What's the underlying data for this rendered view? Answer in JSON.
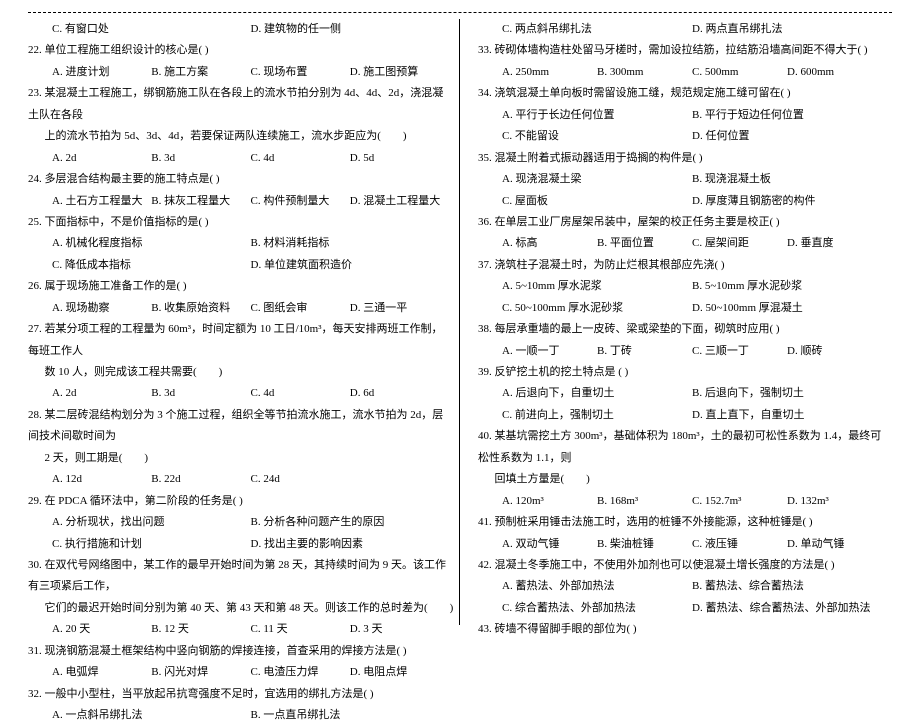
{
  "left": {
    "l1": {
      "c": "  C. 有窗口处",
      "d": "D. 建筑物的任一侧"
    },
    "q22": "22. 单位工程施工组织设计的核心是(        )",
    "q22o": {
      "a": "A. 进度计划",
      "b": "B. 施工方案",
      "c": "C. 现场布置",
      "d": "D. 施工图预算"
    },
    "q23": "23. 某混凝土工程施工，绑钢筋施工队在各段上的流水节拍分别为 4d、4d、2d，浇混凝土队在各段",
    "q23b": "      上的流水节拍为 5d、3d、4d，若要保证两队连续施工，流水步距应为(        )",
    "q23o": {
      "a": "A. 2d",
      "b": "B. 3d",
      "c": "C. 4d",
      "d": "D. 5d"
    },
    "q24": "24. 多层混合结构最主要的施工特点是(        )",
    "q24o": {
      "a": "A. 土石方工程量大",
      "b": "B. 抹灰工程量大",
      "c": "C. 构件预制量大",
      "d": "D. 混凝土工程量大"
    },
    "q25": "25. 下面指标中，不是价值指标的是(        )",
    "q25o1": {
      "a": "A. 机械化程度指标",
      "b": "B. 材料消耗指标"
    },
    "q25o2": {
      "a": "C. 降低成本指标",
      "b": "D. 单位建筑面积造价"
    },
    "q26": "26. 属于现场施工准备工作的是(        )",
    "q26o": {
      "a": "A. 现场勘察",
      "b": "B. 收集原始资料",
      "c": "C. 图纸会审",
      "d": "D. 三通一平"
    },
    "q27": "27. 若某分项工程的工程量为 60m³，时间定额为 10 工日/10m³，每天安排两班工作制，每班工作人",
    "q27b": "      数 10 人，则完成该工程共需要(        )",
    "q27o": {
      "a": "A. 2d",
      "b": "B. 3d",
      "c": "C. 4d",
      "d": "D. 6d"
    },
    "q28": "28. 某二层砖混结构划分为 3 个施工过程，组织全等节拍流水施工，流水节拍为 2d，层间技术间歇时间为",
    "q28b": "      2 天，则工期是(        )",
    "q28o": {
      "a": "A. 12d",
      "b": "B. 22d",
      "c": "C. 24d"
    },
    "q29": "29. 在 PDCA 循环法中，第二阶段的任务是(        )",
    "q29o1": {
      "a": "A. 分析现状，找出问题",
      "b": "B. 分析各种问题产生的原因"
    },
    "q29o2": {
      "a": "C. 执行措施和计划",
      "b": "D. 找出主要的影响因素"
    },
    "q30": "30. 在双代号网络图中，某工作的最早开始时间为第 28 天，其持续时间为 9 天。该工作有三项紧后工作，",
    "q30b": "      它们的最迟开始时间分别为第 40 天、第 43 天和第 48 天。则该工作的总时差为(        )",
    "q30o": {
      "a": "A. 20 天",
      "b": "B. 12 天",
      "c": "C. 11 天",
      "d": "D. 3 天"
    },
    "q31": "31. 现浇钢筋混凝土框架结构中竖向钢筋的焊接连接，首查采用的焊接方法是(        )",
    "q31o": {
      "a": "A. 电弧焊",
      "b": "B. 闪光对焊",
      "c": "C. 电渣压力焊",
      "d": "D. 电阻点焊"
    },
    "q32": "32. 一般中小型柱，当平放起吊抗弯强度不足时，宜选用的绑扎方法是(        )",
    "q32o": {
      "a": "A. 一点斜吊绑扎法",
      "b": "B. 一点直吊绑扎法"
    }
  },
  "right": {
    "q32o2": {
      "a": "C. 两点斜吊绑扎法",
      "b": "D. 两点直吊绑扎法"
    },
    "q33": "33. 砖砌体墙构造柱处留马牙槎时，需加设拉结筋，拉结筋沿墙高间距不得大于(        )",
    "q33o": {
      "a": "A. 250mm",
      "b": "B. 300mm",
      "c": "C. 500mm",
      "d": "D. 600mm"
    },
    "q34": "34. 浇筑混凝土单向板时需留设施工缝，规范规定施工缝可留在(        )",
    "q34o1": {
      "a": "A. 平行于长边任何位置",
      "b": "B. 平行于短边任何位置"
    },
    "q34o2": {
      "a": "C. 不能留设",
      "b": "D. 任何位置"
    },
    "q35": "35. 混凝土附着式振动器适用于捣搁的构件是(        )",
    "q35o1": {
      "a": "A. 现浇混凝土梁",
      "b": "B. 现浇混凝土板"
    },
    "q35o2": {
      "a": "C. 屋面板",
      "b": "D. 厚度薄且钢筋密的构件"
    },
    "q36": "36. 在单层工业厂房屋架吊装中，屋架的校正任务主要是校正(        )",
    "q36o": {
      "a": "A. 标高",
      "b": "B. 平面位置",
      "c": "C. 屋架间距",
      "d": "D. 垂直度"
    },
    "q37": "37. 浇筑柱子混凝土时，为防止烂根其根部应先浇(        )",
    "q37o1": {
      "a": "A. 5~10mm 厚水泥浆",
      "b": "B. 5~10mm 厚水泥砂浆"
    },
    "q37o2": {
      "a": "C. 50~100mm 厚水泥砂浆",
      "b": "D. 50~100mm 厚混凝土"
    },
    "q38": "38. 每层承重墙的最上一皮砖、梁或梁垫的下面，砌筑时应用(        )",
    "q38o": {
      "a": "A. 一顺一丁",
      "b": "B. 丁砖",
      "c": "C. 三顺一丁",
      "d": "D. 顺砖"
    },
    "q39": "39. 反铲挖土机的挖土特点是 (        )",
    "q39o1": {
      "a": "A. 后退向下，自重切土",
      "b": "B. 后退向下，强制切土"
    },
    "q39o2": {
      "a": "C. 前进向上，强制切土",
      "b": "D. 直上直下，自重切土"
    },
    "q40": "40. 某基坑需挖土方 300m³，基础体积为 180m³，土的最初可松性系数为 1.4，最终可松性系数为 1.1，则",
    "q40b": "      回填土方量是(        )",
    "q40o": {
      "a": "A. 120m³",
      "b": "B. 168m³",
      "c": "C. 152.7m³",
      "d": "D. 132m³"
    },
    "q41": "41. 预制桩采用锤击法施工时，选用的桩锤不外接能源，这种桩锤是(        )",
    "q41o": {
      "a": "A. 双动气锤",
      "b": "B. 柴油桩锤",
      "c": "C. 液压锤",
      "d": "D. 单动气锤"
    },
    "q42": "42. 混凝土冬季施工中，不使用外加剂也可以使混凝土增长强度的方法是(        )",
    "q42o1": {
      "a": "A. 蓄热法、外部加热法",
      "b": "B. 蓄热法、综合蓄热法"
    },
    "q42o2": {
      "a": "C. 综合蓄热法、外部加热法",
      "b": "D. 蓄热法、综合蓄热法、外部加热法"
    },
    "q43": "43. 砖墙不得留脚手眼的部位为(        )"
  }
}
